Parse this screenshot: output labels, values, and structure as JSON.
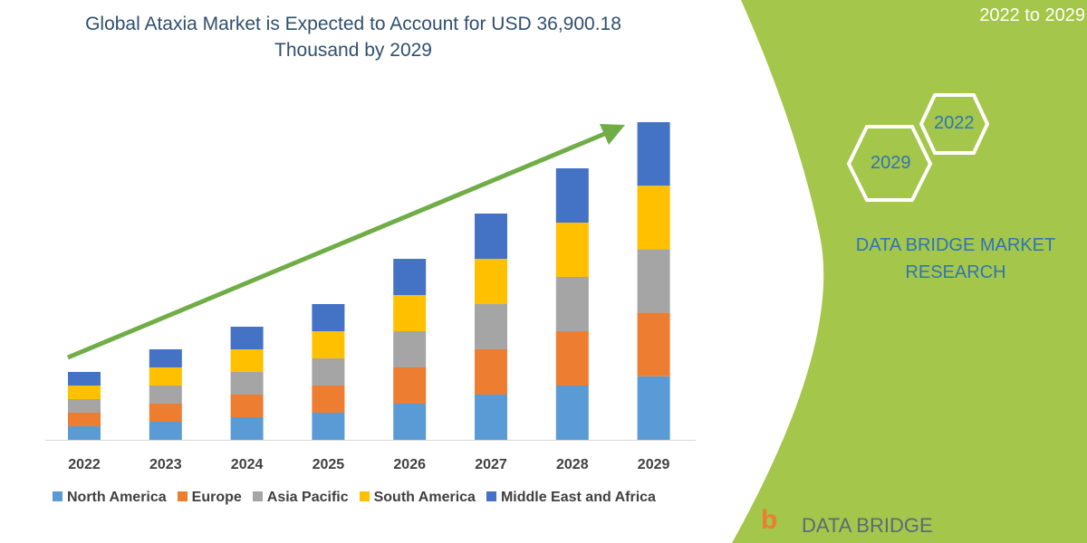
{
  "title_line1": "Global Ataxia Market is Expected to Account for USD 36,900.18",
  "title_line2": "Thousand by 2029",
  "side": {
    "period": "2022 to 2029",
    "hex_start": "2022",
    "hex_end": "2029",
    "brand_line1": "DATA BRIDGE MARKET",
    "brand_line2": "RESEARCH",
    "logo_text": "DATA BRIDGE",
    "green": "#a4c64a"
  },
  "chart_data": {
    "type": "bar",
    "stacked": true,
    "categories": [
      "2022",
      "2023",
      "2024",
      "2025",
      "2026",
      "2027",
      "2028",
      "2029"
    ],
    "series": [
      {
        "name": "North America",
        "color": "#5b9bd5",
        "values": [
          1577,
          2103,
          2628,
          3154,
          4205,
          5257,
          6308,
          7380
        ]
      },
      {
        "name": "Europe",
        "color": "#ed7d31",
        "values": [
          1577,
          2103,
          2628,
          3154,
          4205,
          5257,
          6308,
          7380
        ]
      },
      {
        "name": "Asia Pacific",
        "color": "#a5a5a5",
        "values": [
          1577,
          2103,
          2628,
          3154,
          4205,
          5257,
          6308,
          7380
        ]
      },
      {
        "name": "South America",
        "color": "#ffc000",
        "values": [
          1577,
          2103,
          2628,
          3154,
          4205,
          5257,
          6308,
          7380
        ]
      },
      {
        "name": "Middle East and Africa",
        "color": "#4472c4",
        "values": [
          1577,
          2103,
          2628,
          3154,
          4205,
          5257,
          6308,
          7380
        ]
      }
    ],
    "ylim": [
      0,
      40000
    ],
    "grid": false,
    "legend_position": "bottom",
    "trend_arrow_color": "#70ad47"
  }
}
